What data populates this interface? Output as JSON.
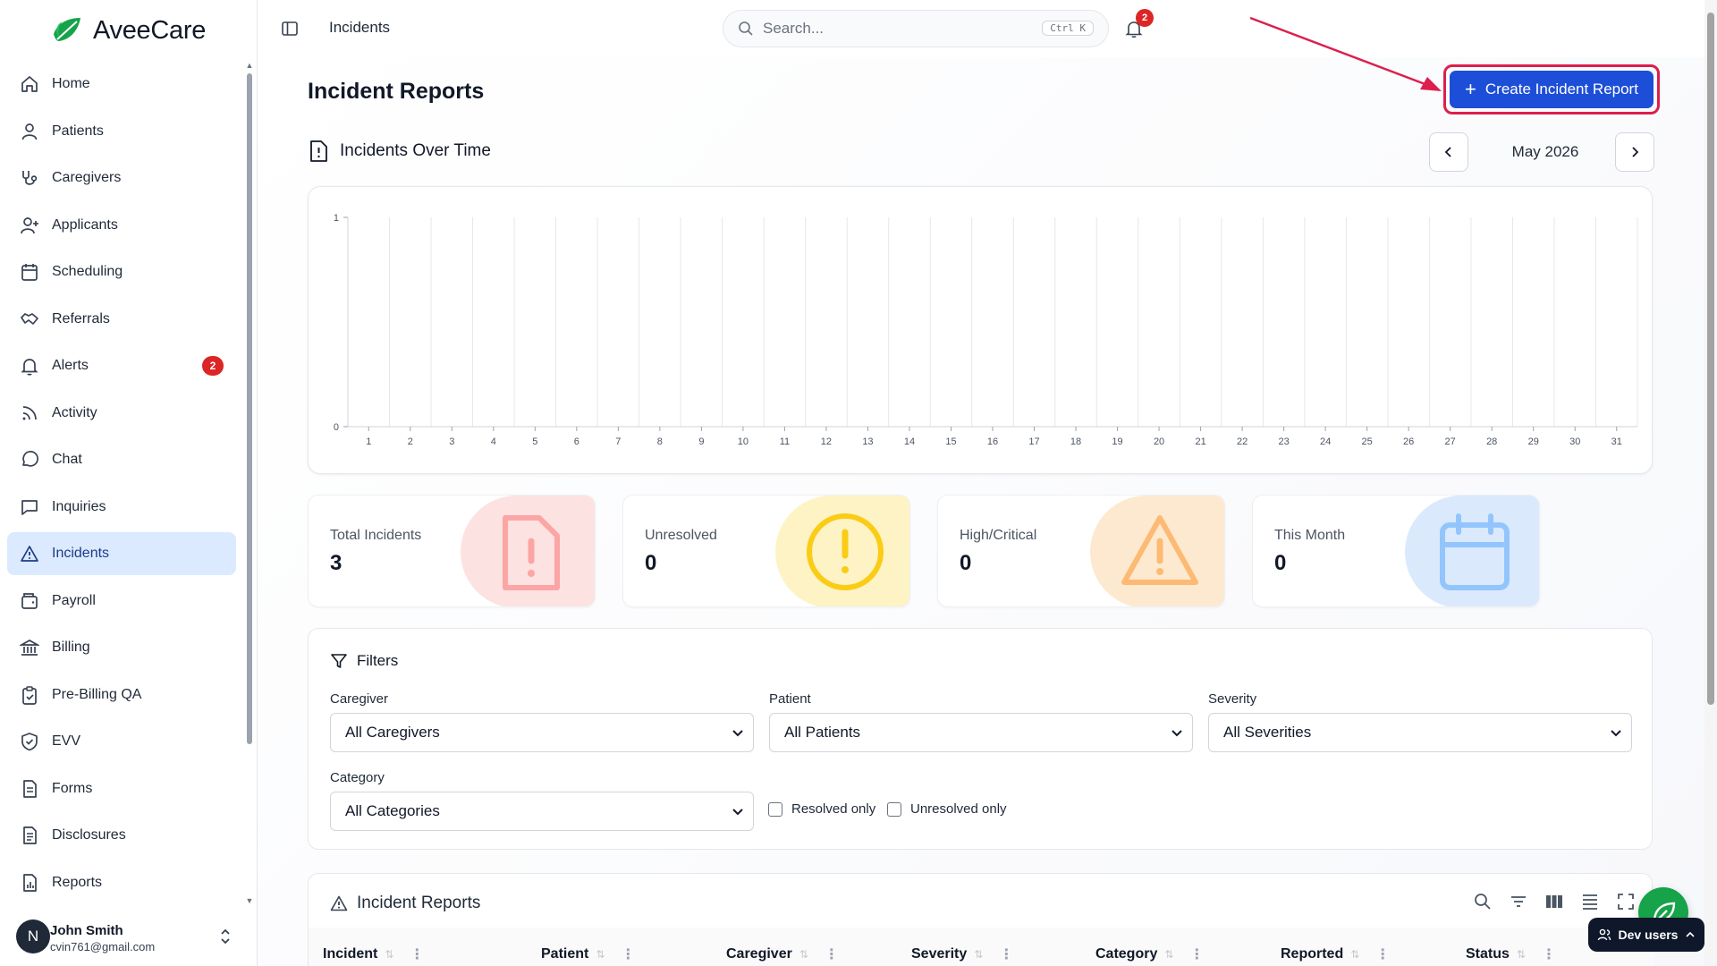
{
  "app": {
    "name": "AveeCare"
  },
  "sidebar": {
    "items": [
      {
        "label": "Home",
        "icon": "home-icon"
      },
      {
        "label": "Patients",
        "icon": "user-icon"
      },
      {
        "label": "Caregivers",
        "icon": "stethoscope-icon"
      },
      {
        "label": "Applicants",
        "icon": "user-plus-icon"
      },
      {
        "label": "Scheduling",
        "icon": "calendar-icon"
      },
      {
        "label": "Referrals",
        "icon": "handshake-icon"
      },
      {
        "label": "Alerts",
        "icon": "bell-icon",
        "badge": "2"
      },
      {
        "label": "Activity",
        "icon": "rss-icon"
      },
      {
        "label": "Chat",
        "icon": "message-circle-icon"
      },
      {
        "label": "Inquiries",
        "icon": "message-square-icon"
      },
      {
        "label": "Incidents",
        "icon": "triangle-alert-icon",
        "active": true
      },
      {
        "label": "Payroll",
        "icon": "wallet-icon"
      },
      {
        "label": "Billing",
        "icon": "landmark-icon"
      },
      {
        "label": "Pre-Billing QA",
        "icon": "clipboard-check-icon"
      },
      {
        "label": "EVV",
        "icon": "shield-check-icon"
      },
      {
        "label": "Forms",
        "icon": "file-text-icon"
      },
      {
        "label": "Disclosures",
        "icon": "file-list-icon"
      },
      {
        "label": "Reports",
        "icon": "file-chart-icon"
      }
    ]
  },
  "user": {
    "initial": "N",
    "name": "John Smith",
    "email": "cvin761@gmail.com"
  },
  "topbar": {
    "breadcrumb": "Incidents",
    "search_placeholder": "Search...",
    "search_shortcut": "Ctrl K",
    "notification_count": "2"
  },
  "page": {
    "title": "Incident Reports",
    "create_button": "Create Incident Report"
  },
  "chart_section": {
    "title": "Incidents Over Time",
    "month_label": "May 2026"
  },
  "chart_data": {
    "type": "bar",
    "title": "",
    "xlabel": "",
    "ylabel": "",
    "categories": [
      "1",
      "2",
      "3",
      "4",
      "5",
      "6",
      "7",
      "8",
      "9",
      "10",
      "11",
      "12",
      "13",
      "14",
      "15",
      "16",
      "17",
      "18",
      "19",
      "20",
      "21",
      "22",
      "23",
      "24",
      "25",
      "26",
      "27",
      "28",
      "29",
      "30",
      "31"
    ],
    "values": [
      0,
      0,
      0,
      0,
      0,
      0,
      0,
      0,
      0,
      0,
      0,
      0,
      0,
      0,
      0,
      0,
      0,
      0,
      0,
      0,
      0,
      0,
      0,
      0,
      0,
      0,
      0,
      0,
      0,
      0,
      0
    ],
    "yticks": [
      "0",
      "1"
    ],
    "ylim": [
      0,
      1
    ],
    "grid": "vertical"
  },
  "stats": [
    {
      "label": "Total Incidents",
      "value": "3",
      "icon": "file-alert-icon",
      "bg": "#fde2e2",
      "fg": "#fca5a5"
    },
    {
      "label": "Unresolved",
      "value": "0",
      "icon": "circle-alert-icon",
      "bg": "#fdf3c4",
      "fg": "#facc15"
    },
    {
      "label": "High/Critical",
      "value": "0",
      "icon": "triangle-alert-icon",
      "bg": "#fde9cf",
      "fg": "#fdba74"
    },
    {
      "label": "This Month",
      "value": "0",
      "icon": "calendar-icon",
      "bg": "#dbe9fd",
      "fg": "#93c5fd"
    }
  ],
  "filters": {
    "title": "Filters",
    "caregiver": {
      "label": "Caregiver",
      "value": "All Caregivers"
    },
    "patient": {
      "label": "Patient",
      "value": "All Patients"
    },
    "severity": {
      "label": "Severity",
      "value": "All Severities"
    },
    "category": {
      "label": "Category",
      "value": "All Categories"
    },
    "resolved_only": "Resolved only",
    "unresolved_only": "Unresolved only"
  },
  "table": {
    "title": "Incident Reports",
    "columns": [
      "Incident",
      "Patient",
      "Caregiver",
      "Severity",
      "Category",
      "Reported",
      "Status"
    ]
  },
  "dev": {
    "label": "Dev users"
  },
  "colors": {
    "accent": "#1d4ed8",
    "highlight": "#dc1f4e",
    "active_nav": "#dbeafe"
  }
}
